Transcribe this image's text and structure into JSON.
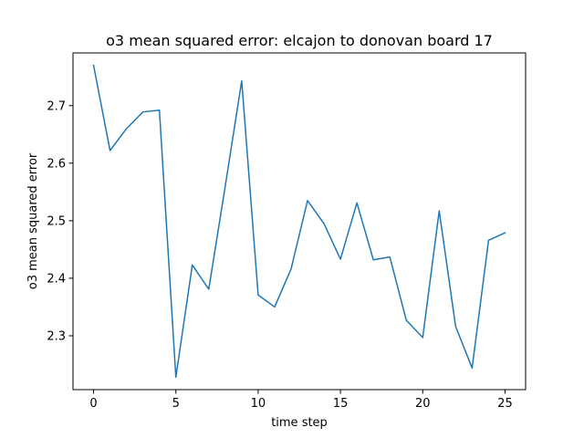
{
  "chart_data": {
    "type": "line",
    "title": "o3 mean squared error: elcajon to donovan board 17",
    "xlabel": "time step",
    "ylabel": "o3 mean squared error",
    "xlim": [
      -1.25,
      26.25
    ],
    "ylim": [
      2.2064,
      2.7916
    ],
    "x_ticks": [
      0,
      5,
      10,
      15,
      20,
      25
    ],
    "y_ticks": [
      2.3,
      2.4,
      2.5,
      2.6,
      2.7
    ],
    "grid": false,
    "series": [
      {
        "color": "#1f77b4",
        "x": [
          0,
          1,
          2,
          3,
          4,
          5,
          6,
          7,
          8,
          9,
          10,
          11,
          12,
          13,
          14,
          15,
          16,
          17,
          18,
          19,
          20,
          21,
          22,
          23,
          24,
          25
        ],
        "values": [
          2.77,
          2.622,
          2.66,
          2.689,
          2.692,
          2.228,
          2.423,
          2.381,
          2.56,
          2.743,
          2.371,
          2.35,
          2.416,
          2.535,
          2.495,
          2.433,
          2.531,
          2.432,
          2.437,
          2.327,
          2.297,
          2.517,
          2.316,
          2.244,
          2.466,
          2.479
        ]
      }
    ]
  }
}
